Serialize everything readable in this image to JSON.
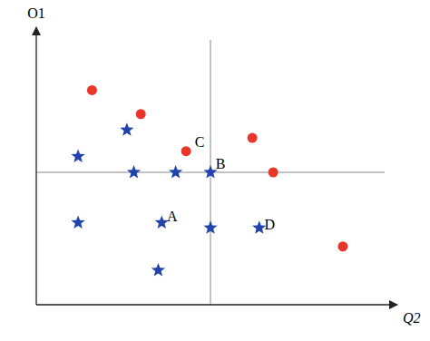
{
  "chart_data": {
    "type": "scatter",
    "xlabel": "Q2",
    "ylabel": "O1",
    "xlim": [
      0.0,
      1.0
    ],
    "ylim": [
      0.0,
      1.0
    ],
    "tick_labels": false,
    "grid": false,
    "series": [
      {
        "color": "#e8372a",
        "marker": "circle",
        "x": [
          0.16,
          0.3,
          0.43,
          0.62,
          0.68,
          0.88
        ],
        "y": [
          0.81,
          0.72,
          0.58,
          0.63,
          0.5,
          0.22
        ]
      },
      {
        "color": "#2244aa",
        "marker": "star",
        "x": [
          0.26,
          0.12,
          0.28,
          0.4,
          0.12,
          0.36,
          0.35,
          0.5,
          0.64
        ],
        "y": [
          0.66,
          0.56,
          0.5,
          0.5,
          0.31,
          0.31,
          0.13,
          0.29,
          0.29
        ]
      },
      {
        "color": "#2244aa",
        "marker": "star",
        "x": [
          0.5
        ],
        "y": [
          0.5
        ]
      }
    ],
    "reference_lines": [
      {
        "axis": "x",
        "value": 0.5,
        "color": "#888888"
      },
      {
        "axis": "y",
        "value": 0.5,
        "color": "#888888"
      }
    ],
    "annotations": [
      {
        "text": "C",
        "x": 0.455,
        "y": 0.595
      },
      {
        "text": "B",
        "x": 0.515,
        "y": 0.515
      },
      {
        "text": "A",
        "x": 0.375,
        "y": 0.315
      },
      {
        "text": "D",
        "x": 0.655,
        "y": 0.285
      }
    ]
  }
}
